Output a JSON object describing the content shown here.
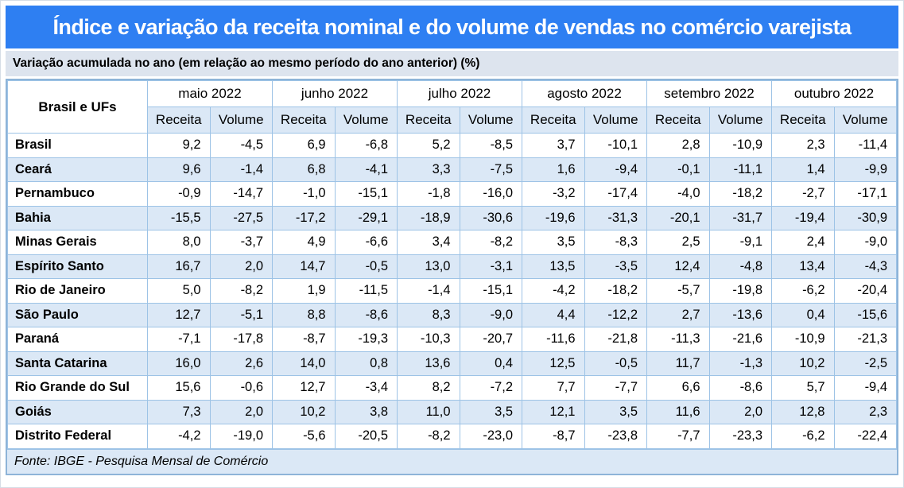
{
  "title": "Índice e variação da receita nominal e do volume de vendas no comércio varejista",
  "subtitle": "Variação acumulada no ano (em relação ao mesmo período do ano anterior) (%)",
  "source": "Fonte: IBGE - Pesquisa Mensal de Comércio",
  "colors": {
    "title_bg": "#2e7ff2",
    "title_text": "#ffffff",
    "subtitle_bg": "#dde4ee",
    "stripe_bg": "#dbe8f6",
    "grid_line": "#9dc3e6",
    "outer_border": "#8eb4d8"
  },
  "chart_data": {
    "type": "table",
    "row_header": "Brasil e UFs",
    "months": [
      "maio 2022",
      "junho 2022",
      "julho 2022",
      "agosto 2022",
      "setembro 2022",
      "outubro 2022"
    ],
    "measures": [
      "Receita",
      "Volume"
    ],
    "rows": [
      {
        "name": "Brasil",
        "values": [
          "9,2",
          "-4,5",
          "6,9",
          "-6,8",
          "5,2",
          "-8,5",
          "3,7",
          "-10,1",
          "2,8",
          "-10,9",
          "2,3",
          "-11,4"
        ]
      },
      {
        "name": "Ceará",
        "values": [
          "9,6",
          "-1,4",
          "6,8",
          "-4,1",
          "3,3",
          "-7,5",
          "1,6",
          "-9,4",
          "-0,1",
          "-11,1",
          "1,4",
          "-9,9"
        ]
      },
      {
        "name": "Pernambuco",
        "values": [
          "-0,9",
          "-14,7",
          "-1,0",
          "-15,1",
          "-1,8",
          "-16,0",
          "-3,2",
          "-17,4",
          "-4,0",
          "-18,2",
          "-2,7",
          "-17,1"
        ]
      },
      {
        "name": "Bahia",
        "values": [
          "-15,5",
          "-27,5",
          "-17,2",
          "-29,1",
          "-18,9",
          "-30,6",
          "-19,6",
          "-31,3",
          "-20,1",
          "-31,7",
          "-19,4",
          "-30,9"
        ]
      },
      {
        "name": "Minas Gerais",
        "values": [
          "8,0",
          "-3,7",
          "4,9",
          "-6,6",
          "3,4",
          "-8,2",
          "3,5",
          "-8,3",
          "2,5",
          "-9,1",
          "2,4",
          "-9,0"
        ]
      },
      {
        "name": "Espírito Santo",
        "values": [
          "16,7",
          "2,0",
          "14,7",
          "-0,5",
          "13,0",
          "-3,1",
          "13,5",
          "-3,5",
          "12,4",
          "-4,8",
          "13,4",
          "-4,3"
        ]
      },
      {
        "name": "Rio de Janeiro",
        "values": [
          "5,0",
          "-8,2",
          "1,9",
          "-11,5",
          "-1,4",
          "-15,1",
          "-4,2",
          "-18,2",
          "-5,7",
          "-19,8",
          "-6,2",
          "-20,4"
        ]
      },
      {
        "name": "São Paulo",
        "values": [
          "12,7",
          "-5,1",
          "8,8",
          "-8,6",
          "8,3",
          "-9,0",
          "4,4",
          "-12,2",
          "2,7",
          "-13,6",
          "0,4",
          "-15,6"
        ]
      },
      {
        "name": "Paraná",
        "values": [
          "-7,1",
          "-17,8",
          "-8,7",
          "-19,3",
          "-10,3",
          "-20,7",
          "-11,6",
          "-21,8",
          "-11,3",
          "-21,6",
          "-10,9",
          "-21,3"
        ]
      },
      {
        "name": "Santa Catarina",
        "values": [
          "16,0",
          "2,6",
          "14,0",
          "0,8",
          "13,6",
          "0,4",
          "12,5",
          "-0,5",
          "11,7",
          "-1,3",
          "10,2",
          "-2,5"
        ]
      },
      {
        "name": "Rio Grande do Sul",
        "values": [
          "15,6",
          "-0,6",
          "12,7",
          "-3,4",
          "8,2",
          "-7,2",
          "7,7",
          "-7,7",
          "6,6",
          "-8,6",
          "5,7",
          "-9,4"
        ]
      },
      {
        "name": "Goiás",
        "values": [
          "7,3",
          "2,0",
          "10,2",
          "3,8",
          "11,0",
          "3,5",
          "12,1",
          "3,5",
          "11,6",
          "2,0",
          "12,8",
          "2,3"
        ]
      },
      {
        "name": "Distrito Federal",
        "values": [
          "-4,2",
          "-19,0",
          "-5,6",
          "-20,5",
          "-8,2",
          "-23,0",
          "-8,7",
          "-23,8",
          "-7,7",
          "-23,3",
          "-6,2",
          "-22,4"
        ]
      }
    ]
  }
}
